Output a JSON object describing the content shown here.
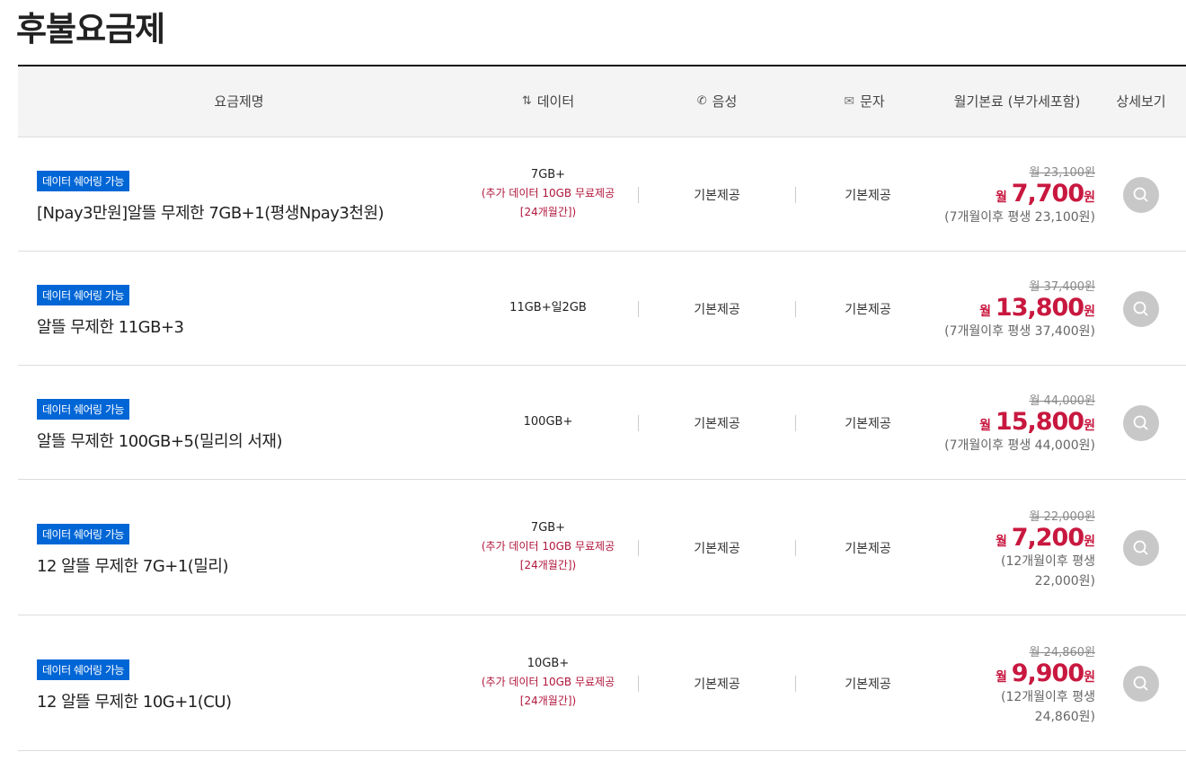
{
  "page_title": "후불요금제",
  "header": {
    "name": "요금제명",
    "data": "데이터",
    "voice": "음성",
    "sms": "문자",
    "fee": "월기본료 (부가세포함)",
    "detail": "상세보기"
  },
  "colors": {
    "badge": "#0066d6",
    "price": "#c8183f"
  },
  "plans": [
    {
      "badge": "데이터 쉐어링 가능",
      "name": "[Npay3만원]알뜰 무제한 7GB+1(평생Npay3천원)",
      "data": "7GB+",
      "data_extra": "(추가 데이터 10GB 무료제공",
      "data_extra2": "[24개월간])",
      "voice": "기본제공",
      "sms": "기본제공",
      "orig": "월 23,100원",
      "prefix": "월",
      "price": "7,700",
      "suffix": "원",
      "after": "(7개월이후 평생 23,100원)",
      "after2": ""
    },
    {
      "badge": "데이터 쉐어링 가능",
      "name": "알뜰 무제한 11GB+3",
      "data": "11GB+일2GB",
      "data_extra": "",
      "data_extra2": "",
      "voice": "기본제공",
      "sms": "기본제공",
      "orig": "월 37,400원",
      "prefix": "월",
      "price": "13,800",
      "suffix": "원",
      "after": "(7개월이후 평생 37,400원)",
      "after2": ""
    },
    {
      "badge": "데이터 쉐어링 가능",
      "name": "알뜰 무제한 100GB+5(밀리의 서재)",
      "data": "100GB+",
      "data_extra": "",
      "data_extra2": "",
      "voice": "기본제공",
      "sms": "기본제공",
      "orig": "월 44,000원",
      "prefix": "월",
      "price": "15,800",
      "suffix": "원",
      "after": "(7개월이후 평생 44,000원)",
      "after2": ""
    },
    {
      "badge": "데이터 쉐어링 가능",
      "name": "12 알뜰 무제한 7G+1(밀리)",
      "data": "7GB+",
      "data_extra": "(추가 데이터 10GB 무료제공",
      "data_extra2": "[24개월간])",
      "voice": "기본제공",
      "sms": "기본제공",
      "orig": "월 22,000원",
      "prefix": "월",
      "price": "7,200",
      "suffix": "원",
      "after": "(12개월이후 평생",
      "after2": "22,000원)"
    },
    {
      "badge": "데이터 쉐어링 가능",
      "name": "12 알뜰 무제한 10G+1(CU)",
      "data": "10GB+",
      "data_extra": "(추가 데이터 10GB 무료제공",
      "data_extra2": "[24개월간])",
      "voice": "기본제공",
      "sms": "기본제공",
      "orig": "월 24,860원",
      "prefix": "월",
      "price": "9,900",
      "suffix": "원",
      "after": "(12개월이후 평생",
      "after2": "24,860원)"
    }
  ]
}
